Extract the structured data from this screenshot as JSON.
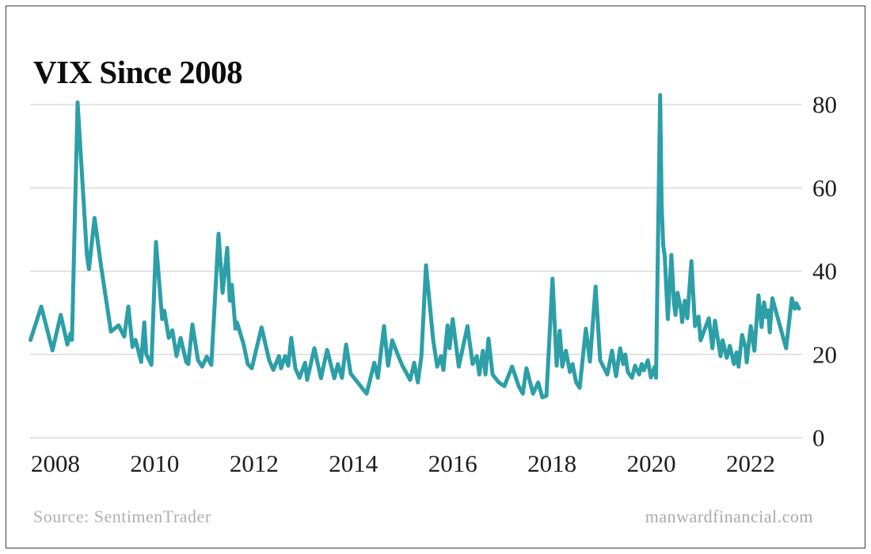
{
  "header": {
    "title": "VIX Since 2008"
  },
  "footer": {
    "source": "Source: SentimenTrader",
    "site": "manwardfinancial.com"
  },
  "colors": {
    "line": "#2C9FA7",
    "grid": "#d9d9d9",
    "border": "#3e3e3e",
    "axis_text": "#1d1d1d",
    "footer_text": "#b0b0b0",
    "background": "#ffffff"
  },
  "chart_data": {
    "type": "line",
    "title": "VIX Since 2008",
    "xlabel": "",
    "ylabel": "",
    "grid": "horizontal",
    "legend": "none",
    "x_axis": {
      "ticks": [
        "2008",
        "2010",
        "2012",
        "2014",
        "2016",
        "2018",
        "2020",
        "2022"
      ],
      "range": [
        2007.9,
        2022.95
      ]
    },
    "y_axis": {
      "ticks": [
        0,
        20,
        40,
        60,
        80
      ],
      "range": [
        0,
        86
      ],
      "position": "right"
    },
    "series": [
      {
        "name": "VIX",
        "points": [
          [
            2007.92,
            23.5
          ],
          [
            2008.13,
            31.5
          ],
          [
            2008.35,
            21.0
          ],
          [
            2008.51,
            29.5
          ],
          [
            2008.64,
            22.4
          ],
          [
            2008.7,
            25.0
          ],
          [
            2008.73,
            23.5
          ],
          [
            2008.84,
            80.5
          ],
          [
            2009.02,
            44.0
          ],
          [
            2009.06,
            40.5
          ],
          [
            2009.17,
            52.8
          ],
          [
            2009.3,
            41.0
          ],
          [
            2009.49,
            25.5
          ],
          [
            2009.64,
            27.0
          ],
          [
            2009.75,
            24.3
          ],
          [
            2009.83,
            31.5
          ],
          [
            2009.91,
            21.8
          ],
          [
            2009.97,
            23.5
          ],
          [
            2010.08,
            18.2
          ],
          [
            2010.14,
            27.7
          ],
          [
            2010.18,
            20.1
          ],
          [
            2010.28,
            17.5
          ],
          [
            2010.37,
            47.0
          ],
          [
            2010.49,
            28.5
          ],
          [
            2010.53,
            30.5
          ],
          [
            2010.62,
            24.0
          ],
          [
            2010.69,
            25.8
          ],
          [
            2010.77,
            19.6
          ],
          [
            2010.85,
            24.0
          ],
          [
            2010.96,
            18.2
          ],
          [
            2011.0,
            17.7
          ],
          [
            2011.08,
            27.2
          ],
          [
            2011.19,
            18.6
          ],
          [
            2011.27,
            17.1
          ],
          [
            2011.36,
            19.5
          ],
          [
            2011.45,
            17.5
          ],
          [
            2011.59,
            49.0
          ],
          [
            2011.67,
            34.8
          ],
          [
            2011.76,
            45.6
          ],
          [
            2011.81,
            32.9
          ],
          [
            2011.85,
            36.7
          ],
          [
            2011.92,
            26.2
          ],
          [
            2011.95,
            27.7
          ],
          [
            2012.08,
            22.4
          ],
          [
            2012.16,
            17.7
          ],
          [
            2012.24,
            16.7
          ],
          [
            2012.43,
            26.5
          ],
          [
            2012.58,
            18.6
          ],
          [
            2012.66,
            16.3
          ],
          [
            2012.77,
            19.6
          ],
          [
            2012.81,
            16.7
          ],
          [
            2012.89,
            19.6
          ],
          [
            2012.95,
            17.3
          ],
          [
            2013.01,
            24.0
          ],
          [
            2013.09,
            16.7
          ],
          [
            2013.17,
            14.4
          ],
          [
            2013.28,
            18.0
          ],
          [
            2013.32,
            13.9
          ],
          [
            2013.46,
            21.5
          ],
          [
            2013.59,
            14.3
          ],
          [
            2013.71,
            21.1
          ],
          [
            2013.85,
            14.3
          ],
          [
            2013.92,
            17.7
          ],
          [
            2014.0,
            14.4
          ],
          [
            2014.08,
            22.4
          ],
          [
            2014.17,
            15.4
          ],
          [
            2014.48,
            10.6
          ],
          [
            2014.63,
            18.0
          ],
          [
            2014.7,
            14.4
          ],
          [
            2014.82,
            26.8
          ],
          [
            2014.9,
            17.3
          ],
          [
            2014.98,
            23.4
          ],
          [
            2015.1,
            19.6
          ],
          [
            2015.18,
            17.3
          ],
          [
            2015.33,
            13.9
          ],
          [
            2015.41,
            18.0
          ],
          [
            2015.48,
            13.3
          ],
          [
            2015.55,
            19.6
          ],
          [
            2015.64,
            41.4
          ],
          [
            2015.78,
            23.4
          ],
          [
            2015.86,
            17.1
          ],
          [
            2015.93,
            19.6
          ],
          [
            2015.98,
            16.3
          ],
          [
            2016.06,
            27.0
          ],
          [
            2016.1,
            21.5
          ],
          [
            2016.16,
            28.5
          ],
          [
            2016.28,
            17.1
          ],
          [
            2016.45,
            26.8
          ],
          [
            2016.55,
            17.7
          ],
          [
            2016.63,
            19.6
          ],
          [
            2016.68,
            15.2
          ],
          [
            2016.75,
            20.9
          ],
          [
            2016.8,
            15.2
          ],
          [
            2016.86,
            23.8
          ],
          [
            2016.94,
            15.2
          ],
          [
            2017.06,
            13.3
          ],
          [
            2017.17,
            12.4
          ],
          [
            2017.32,
            17.1
          ],
          [
            2017.45,
            12.4
          ],
          [
            2017.53,
            10.6
          ],
          [
            2017.6,
            16.7
          ],
          [
            2017.73,
            10.6
          ],
          [
            2017.83,
            13.3
          ],
          [
            2017.91,
            9.7
          ],
          [
            2017.99,
            10.1
          ],
          [
            2018.11,
            38.2
          ],
          [
            2018.19,
            17.3
          ],
          [
            2018.25,
            25.7
          ],
          [
            2018.3,
            17.1
          ],
          [
            2018.37,
            20.9
          ],
          [
            2018.45,
            15.8
          ],
          [
            2018.5,
            17.7
          ],
          [
            2018.57,
            13.3
          ],
          [
            2018.64,
            12.0
          ],
          [
            2018.76,
            26.2
          ],
          [
            2018.84,
            18.3
          ],
          [
            2018.95,
            36.3
          ],
          [
            2019.04,
            18.6
          ],
          [
            2019.18,
            15.2
          ],
          [
            2019.27,
            20.9
          ],
          [
            2019.35,
            14.8
          ],
          [
            2019.43,
            21.5
          ],
          [
            2019.49,
            17.7
          ],
          [
            2019.53,
            20.0
          ],
          [
            2019.58,
            15.8
          ],
          [
            2019.66,
            14.4
          ],
          [
            2019.72,
            17.3
          ],
          [
            2019.8,
            15.2
          ],
          [
            2019.85,
            17.7
          ],
          [
            2019.89,
            16.2
          ],
          [
            2019.97,
            18.6
          ],
          [
            2020.03,
            14.5
          ],
          [
            2020.1,
            17.0
          ],
          [
            2020.13,
            14.4
          ],
          [
            2020.21,
            82.3
          ],
          [
            2020.24,
            55.7
          ],
          [
            2020.27,
            46.2
          ],
          [
            2020.3,
            43.7
          ],
          [
            2020.36,
            28.5
          ],
          [
            2020.43,
            43.9
          ],
          [
            2020.48,
            32.3
          ],
          [
            2020.51,
            29.5
          ],
          [
            2020.55,
            34.8
          ],
          [
            2020.62,
            30.6
          ],
          [
            2020.64,
            27.8
          ],
          [
            2020.69,
            32.9
          ],
          [
            2020.74,
            28.7
          ],
          [
            2020.82,
            42.4
          ],
          [
            2020.89,
            26.8
          ],
          [
            2020.96,
            29.1
          ],
          [
            2021.0,
            23.4
          ],
          [
            2021.16,
            28.7
          ],
          [
            2021.23,
            21.5
          ],
          [
            2021.28,
            28.1
          ],
          [
            2021.39,
            19.6
          ],
          [
            2021.43,
            23.4
          ],
          [
            2021.51,
            19.2
          ],
          [
            2021.57,
            22.1
          ],
          [
            2021.65,
            17.7
          ],
          [
            2021.7,
            20.5
          ],
          [
            2021.74,
            17.1
          ],
          [
            2021.81,
            24.7
          ],
          [
            2021.88,
            21.5
          ],
          [
            2021.9,
            18.1
          ],
          [
            2021.98,
            26.8
          ],
          [
            2022.05,
            20.9
          ],
          [
            2022.13,
            34.2
          ],
          [
            2022.19,
            26.6
          ],
          [
            2022.24,
            32.5
          ],
          [
            2022.28,
            29.0
          ],
          [
            2022.32,
            30.6
          ],
          [
            2022.35,
            25.3
          ],
          [
            2022.4,
            33.5
          ],
          [
            2022.67,
            21.5
          ],
          [
            2022.78,
            33.5
          ],
          [
            2022.84,
            31.0
          ],
          [
            2022.87,
            32.3
          ],
          [
            2022.92,
            31.0
          ]
        ]
      }
    ]
  }
}
